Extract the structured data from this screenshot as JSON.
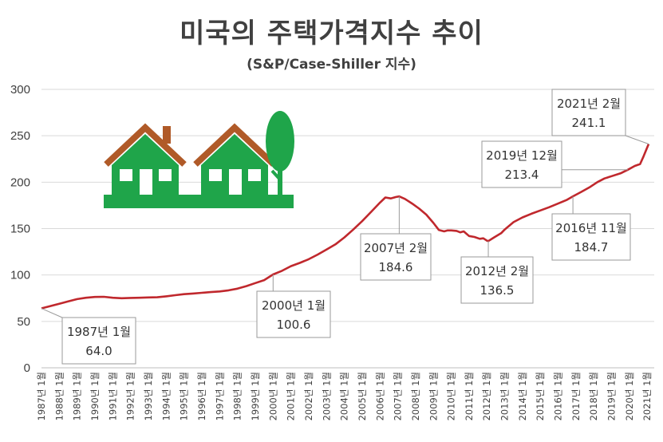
{
  "title": "미국의 주택가격지수 추이",
  "subtitle": "(S&P/Case-Shiller 지수)",
  "colors": {
    "line": "#c0282d",
    "house": "#1fa54a",
    "roof": "#b05a28",
    "grid": "#d9d9d9",
    "text": "#404040"
  },
  "icons": [
    "house-icon",
    "house-icon",
    "tree-icon"
  ],
  "chart_data": {
    "type": "line",
    "title": "미국의 주택가격지수 추이",
    "subtitle": "(S&P/Case-Shiller 지수)",
    "ylim": [
      0,
      300
    ],
    "yticks": [
      0,
      50,
      100,
      150,
      200,
      250,
      300
    ],
    "grid": true,
    "categories": [
      "1987년 1월",
      "1988년 1월",
      "1989년 1월",
      "1990년 1월",
      "1991년 1월",
      "1992년 1월",
      "1993년 1월",
      "1994년 1월",
      "1995년 1월",
      "1996년 1월",
      "1997년 1월",
      "1998년 1월",
      "1999년 1월",
      "2000년 1월",
      "2001년 1월",
      "2002년 1월",
      "2003년 1월",
      "2004년 1월",
      "2005년 1월",
      "2006년 1월",
      "2007년 1월",
      "2008년 1월",
      "2009년 1월",
      "2010년 1월",
      "2011년 1월",
      "2012년 1월",
      "2013년 1월",
      "2014년 1월",
      "2015년 1월",
      "2016년 1월",
      "2017년 1월",
      "2018년 1월",
      "2019년 1월",
      "2020년 1월",
      "2021년 1월"
    ],
    "series": [
      {
        "values": [
          [
            1987.0,
            64.0
          ],
          [
            1987.5,
            66.5
          ],
          [
            1988.0,
            69.0
          ],
          [
            1988.5,
            71.5
          ],
          [
            1989.0,
            74.0
          ],
          [
            1989.5,
            75.5
          ],
          [
            1990.0,
            76.3
          ],
          [
            1990.5,
            76.5
          ],
          [
            1991.0,
            75.5
          ],
          [
            1991.5,
            75.0
          ],
          [
            1992.0,
            75.3
          ],
          [
            1992.5,
            75.5
          ],
          [
            1993.0,
            75.8
          ],
          [
            1993.5,
            76.0
          ],
          [
            1994.0,
            77.0
          ],
          [
            1994.5,
            78.2
          ],
          [
            1995.0,
            79.3
          ],
          [
            1995.5,
            80.0
          ],
          [
            1996.0,
            80.8
          ],
          [
            1996.5,
            81.6
          ],
          [
            1997.0,
            82.3
          ],
          [
            1997.5,
            83.5
          ],
          [
            1998.0,
            85.3
          ],
          [
            1998.5,
            88.0
          ],
          [
            1999.0,
            91.3
          ],
          [
            1999.5,
            94.5
          ],
          [
            2000.0,
            100.6
          ],
          [
            2000.5,
            104.5
          ],
          [
            2001.0,
            109.5
          ],
          [
            2001.5,
            113.0
          ],
          [
            2002.0,
            117.0
          ],
          [
            2002.5,
            122.0
          ],
          [
            2003.0,
            127.5
          ],
          [
            2003.5,
            133.0
          ],
          [
            2004.0,
            140.5
          ],
          [
            2004.5,
            149.0
          ],
          [
            2005.0,
            158.0
          ],
          [
            2005.5,
            168.0
          ],
          [
            2006.0,
            178.0
          ],
          [
            2006.3,
            183.5
          ],
          [
            2006.6,
            182.5
          ],
          [
            2006.9,
            184.0
          ],
          [
            2007.08,
            184.6
          ],
          [
            2007.4,
            182.0
          ],
          [
            2007.8,
            177.0
          ],
          [
            2008.2,
            171.5
          ],
          [
            2008.6,
            165.0
          ],
          [
            2009.0,
            156.0
          ],
          [
            2009.3,
            148.5
          ],
          [
            2009.6,
            147.0
          ],
          [
            2009.8,
            148.0
          ],
          [
            2010.0,
            148.0
          ],
          [
            2010.3,
            147.5
          ],
          [
            2010.5,
            146.0
          ],
          [
            2010.7,
            147.0
          ],
          [
            2011.0,
            142.0
          ],
          [
            2011.3,
            141.0
          ],
          [
            2011.6,
            139.0
          ],
          [
            2011.8,
            139.5
          ],
          [
            2012.0,
            137.0
          ],
          [
            2012.08,
            136.5
          ],
          [
            2012.4,
            140.5
          ],
          [
            2012.8,
            145.0
          ],
          [
            2013.0,
            149.0
          ],
          [
            2013.5,
            157.0
          ],
          [
            2014.0,
            162.0
          ],
          [
            2014.5,
            166.0
          ],
          [
            2015.0,
            169.5
          ],
          [
            2015.5,
            173.0
          ],
          [
            2016.0,
            177.0
          ],
          [
            2016.5,
            181.0
          ],
          [
            2016.83,
            184.7
          ],
          [
            2017.3,
            189.5
          ],
          [
            2017.8,
            195.0
          ],
          [
            2018.2,
            200.0
          ],
          [
            2018.6,
            204.0
          ],
          [
            2019.0,
            206.5
          ],
          [
            2019.5,
            209.5
          ],
          [
            2019.92,
            213.4
          ],
          [
            2020.3,
            217.5
          ],
          [
            2020.6,
            219.5
          ],
          [
            2020.8,
            228.0
          ],
          [
            2021.08,
            241.1
          ]
        ]
      }
    ],
    "annotations": [
      {
        "x": 1987.0,
        "y": 64.0,
        "label": "1987년 1월",
        "value": "64.0"
      },
      {
        "x": 2000.0,
        "y": 100.6,
        "label": "2000년 1월",
        "value": "100.6"
      },
      {
        "x": 2007.08,
        "y": 184.6,
        "label": "2007년 2월",
        "value": "184.6"
      },
      {
        "x": 2012.08,
        "y": 136.5,
        "label": "2012년 2월",
        "value": "136.5"
      },
      {
        "x": 2016.83,
        "y": 184.7,
        "label": "2016년 11월",
        "value": "184.7"
      },
      {
        "x": 2019.92,
        "y": 213.4,
        "label": "2019년 12월",
        "value": "213.4"
      },
      {
        "x": 2021.08,
        "y": 241.1,
        "label": "2021년 2월",
        "value": "241.1"
      }
    ]
  }
}
